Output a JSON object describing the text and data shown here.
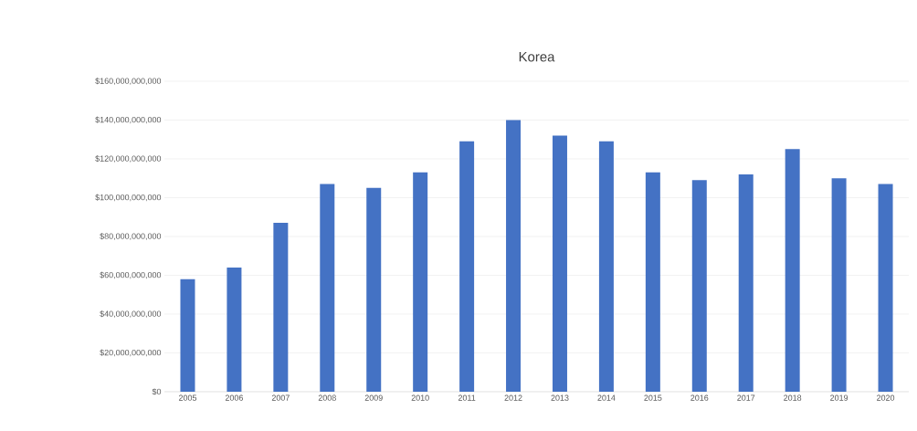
{
  "chart_data": {
    "type": "bar",
    "title": "Korea",
    "categories": [
      "2005",
      "2006",
      "2007",
      "2008",
      "2009",
      "2010",
      "2011",
      "2012",
      "2013",
      "2014",
      "2015",
      "2016",
      "2017",
      "2018",
      "2019",
      "2020"
    ],
    "values": [
      58000000000,
      64000000000,
      87000000000,
      107000000000,
      105000000000,
      113000000000,
      129000000000,
      140000000000,
      132000000000,
      129000000000,
      113000000000,
      109000000000,
      112000000000,
      125000000000,
      110000000000,
      107000000000
    ],
    "color": "#4472c4",
    "ylim": [
      0,
      160000000000
    ],
    "yticks": [
      {
        "value": 0,
        "label": "$0"
      },
      {
        "value": 20000000000,
        "label": "$20,000,000,000"
      },
      {
        "value": 40000000000,
        "label": "$40,000,000,000"
      },
      {
        "value": 60000000000,
        "label": "$60,000,000,000"
      },
      {
        "value": 80000000000,
        "label": "$80,000,000,000"
      },
      {
        "value": 100000000000,
        "label": "$100,000,000,000"
      },
      {
        "value": 120000000000,
        "label": "$120,000,000,000"
      },
      {
        "value": 140000000000,
        "label": "$140,000,000,000"
      },
      {
        "value": 160000000000,
        "label": "$160,000,000,000"
      }
    ],
    "grid": "y"
  }
}
